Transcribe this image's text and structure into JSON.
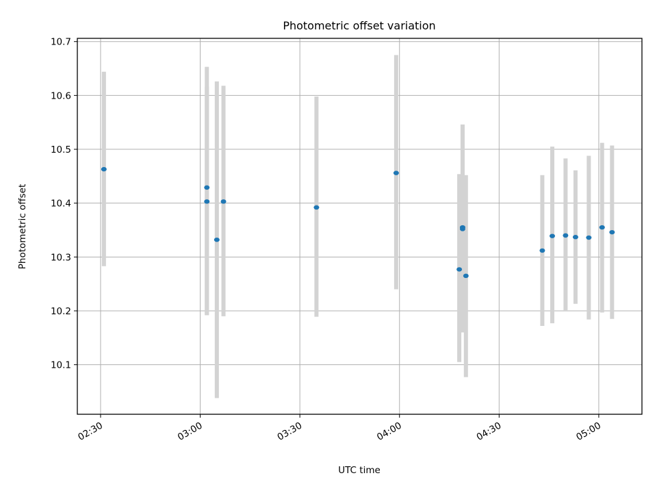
{
  "chart_data": {
    "type": "scatter",
    "title": "Photometric offset variation",
    "xlabel": "UTC time",
    "ylabel": "Photometric offset",
    "x_ticks": [
      "02:30",
      "03:00",
      "03:30",
      "04:00",
      "04:30",
      "05:00"
    ],
    "y_ticks": [
      "10.1",
      "10.2",
      "10.3",
      "10.4",
      "10.5",
      "10.6",
      "10.7"
    ],
    "xlim": [
      "02:23",
      "05:13"
    ],
    "ylim": [
      10.008,
      10.706
    ],
    "grid": true,
    "colors": {
      "points": "#1f77b4",
      "error_bars": "#d3d3d3",
      "grid": "#b0b0b0"
    },
    "points": [
      {
        "time": "02:31",
        "y": 10.463,
        "err_low": 10.283,
        "err_high": 10.644
      },
      {
        "time": "03:02",
        "y": 10.429,
        "err_low": 10.192,
        "err_high": 10.653
      },
      {
        "time": "03:02",
        "y": 10.403,
        "err_low": 10.192,
        "err_high": 10.616
      },
      {
        "time": "03:05",
        "y": 10.332,
        "err_low": 10.038,
        "err_high": 10.626
      },
      {
        "time": "03:07",
        "y": 10.403,
        "err_low": 10.19,
        "err_high": 10.618
      },
      {
        "time": "03:35",
        "y": 10.392,
        "err_low": 10.189,
        "err_high": 10.598
      },
      {
        "time": "03:59",
        "y": 10.456,
        "err_low": 10.24,
        "err_high": 10.675
      },
      {
        "time": "04:18",
        "y": 10.277,
        "err_low": 10.105,
        "err_high": 10.454
      },
      {
        "time": "04:19",
        "y": 10.352,
        "err_low": 10.16,
        "err_high": 10.546
      },
      {
        "time": "04:19",
        "y": 10.355,
        "err_low": 10.16,
        "err_high": 10.546
      },
      {
        "time": "04:20",
        "y": 10.265,
        "err_low": 10.077,
        "err_high": 10.452
      },
      {
        "time": "04:43",
        "y": 10.312,
        "err_low": 10.172,
        "err_high": 10.452
      },
      {
        "time": "04:46",
        "y": 10.339,
        "err_low": 10.177,
        "err_high": 10.505
      },
      {
        "time": "04:50",
        "y": 10.34,
        "err_low": 10.2,
        "err_high": 10.483
      },
      {
        "time": "04:53",
        "y": 10.337,
        "err_low": 10.213,
        "err_high": 10.461
      },
      {
        "time": "04:57",
        "y": 10.336,
        "err_low": 10.184,
        "err_high": 10.488
      },
      {
        "time": "05:01",
        "y": 10.355,
        "err_low": 10.197,
        "err_high": 10.512
      },
      {
        "time": "05:04",
        "y": 10.346,
        "err_low": 10.185,
        "err_high": 10.507
      }
    ]
  }
}
